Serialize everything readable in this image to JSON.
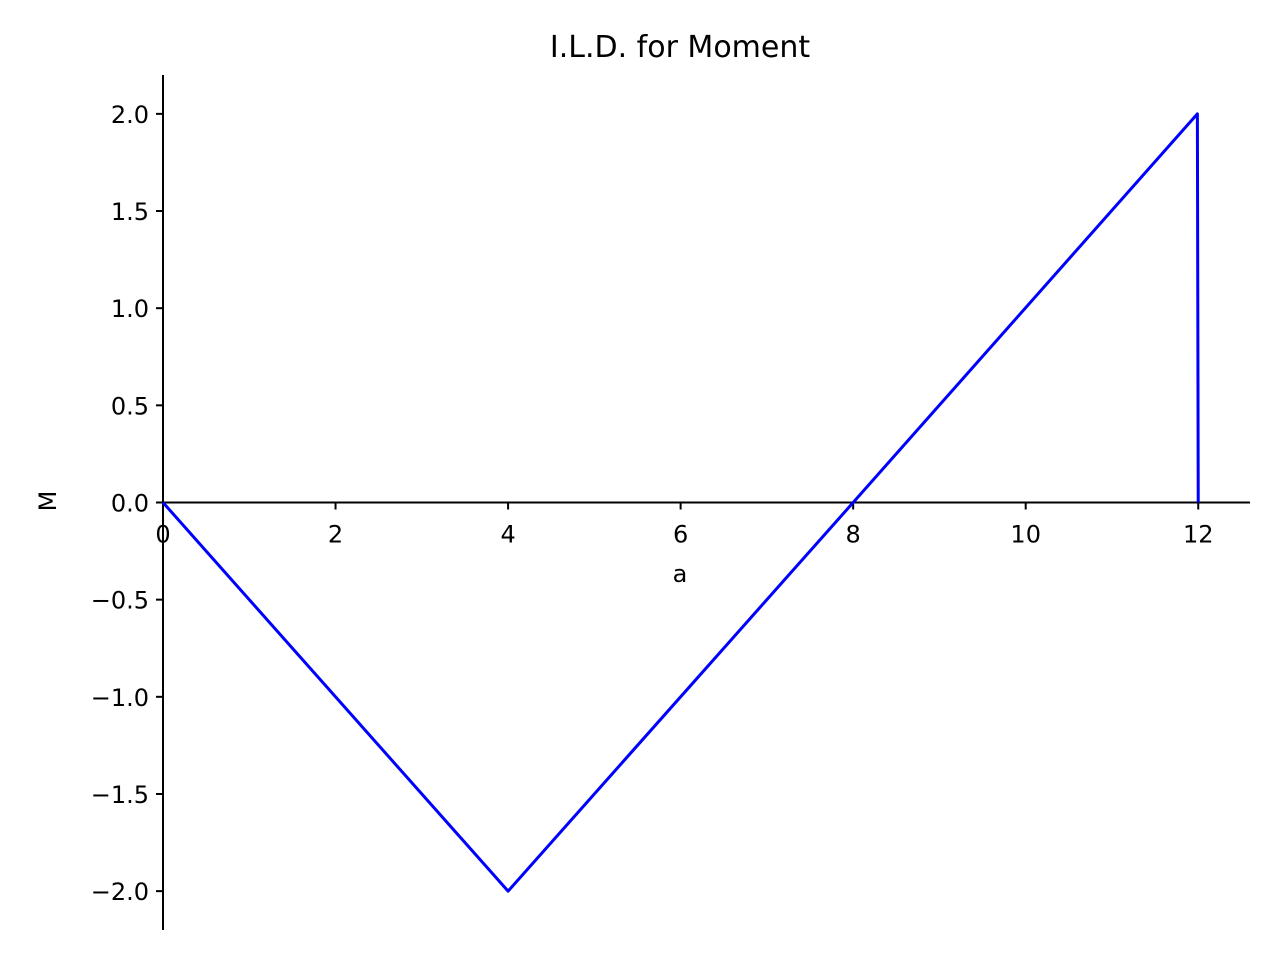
{
  "chart_data": {
    "type": "line",
    "title": "I.L.D. for Moment",
    "xlabel": "a",
    "ylabel": "M",
    "xlim": [
      0,
      12.6
    ],
    "ylim": [
      -2.2,
      2.2
    ],
    "x_ticks": [
      0,
      2,
      4,
      6,
      8,
      10,
      12
    ],
    "x_tick_labels": [
      "0",
      "2",
      "4",
      "6",
      "8",
      "10",
      "12"
    ],
    "y_ticks": [
      -2.0,
      -1.5,
      -1.0,
      -0.5,
      0.0,
      0.5,
      1.0,
      1.5,
      2.0
    ],
    "y_tick_labels": [
      "−2.0",
      "−1.5",
      "−1.0",
      "−0.5",
      "0.0",
      "0.5",
      "1.0",
      "1.5",
      "2.0"
    ],
    "grid": false,
    "spines": "left axis and x-axis through zero",
    "series": [
      {
        "color": "#0000ff",
        "x": [
          0,
          4,
          8,
          11.99,
          12
        ],
        "y": [
          0,
          -2,
          0,
          2,
          0
        ]
      }
    ]
  }
}
